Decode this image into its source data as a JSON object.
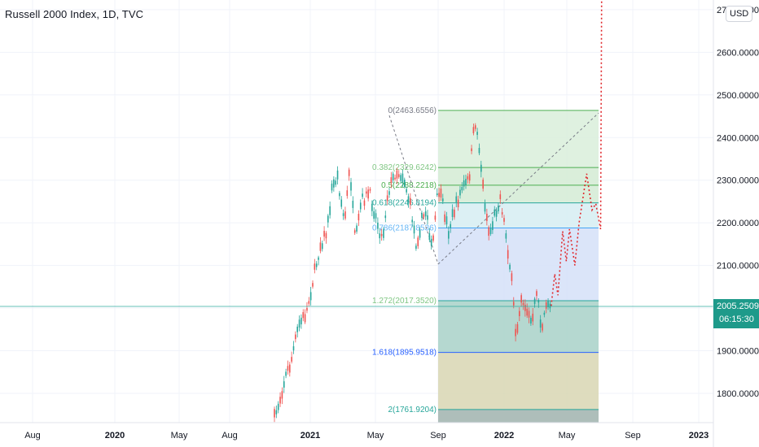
{
  "title": "Russell 2000 Index, 1D, TVC",
  "currency": "USD",
  "last_price": "2005.2509",
  "countdown": "06:15:30",
  "colors": {
    "up": "#26a69a",
    "down": "#ef5350",
    "projection": "#e0282c",
    "last_price_tag": "#1e9a8a"
  },
  "chart_data": {
    "type": "candlestick",
    "x_axis_labels": [
      "Aug",
      "2020",
      "May",
      "Aug",
      "2021",
      "May",
      "Sep",
      "2022",
      "May",
      "Sep",
      "2023"
    ],
    "y_axis_labels": [
      "2700.0000",
      "2600.0000",
      "2500.0000",
      "2400.0000",
      "2300.0000",
      "2200.0000",
      "2100.0000",
      "2000.0000",
      "1900.0000",
      "1800.0000"
    ],
    "ylim": [
      1726,
      2760
    ],
    "price_path": [
      {
        "date": "2020-10-25",
        "close": 1740
      },
      {
        "date": "2020-11-05",
        "close": 1790
      },
      {
        "date": "2020-11-15",
        "close": 1840
      },
      {
        "date": "2020-11-25",
        "close": 1870
      },
      {
        "date": "2020-12-10",
        "close": 1960
      },
      {
        "date": "2020-12-25",
        "close": 1990
      },
      {
        "date": "2021-01-10",
        "close": 2090
      },
      {
        "date": "2021-01-20",
        "close": 2150
      },
      {
        "date": "2021-02-01",
        "close": 2180
      },
      {
        "date": "2021-02-10",
        "close": 2280
      },
      {
        "date": "2021-02-20",
        "close": 2310
      },
      {
        "date": "2021-03-05",
        "close": 2200
      },
      {
        "date": "2021-03-15",
        "close": 2330
      },
      {
        "date": "2021-03-25",
        "close": 2150
      },
      {
        "date": "2021-04-05",
        "close": 2250
      },
      {
        "date": "2021-04-20",
        "close": 2270
      },
      {
        "date": "2021-05-05",
        "close": 2200
      },
      {
        "date": "2021-05-15",
        "close": 2160
      },
      {
        "date": "2021-05-25",
        "close": 2270
      },
      {
        "date": "2021-06-10",
        "close": 2320
      },
      {
        "date": "2021-06-25",
        "close": 2310
      },
      {
        "date": "2021-07-10",
        "close": 2230
      },
      {
        "date": "2021-07-20",
        "close": 2150
      },
      {
        "date": "2021-08-01",
        "close": 2210
      },
      {
        "date": "2021-08-10",
        "close": 2230
      },
      {
        "date": "2021-08-20",
        "close": 2130
      },
      {
        "date": "2021-09-01",
        "close": 2280
      },
      {
        "date": "2021-09-10",
        "close": 2240
      },
      {
        "date": "2021-09-20",
        "close": 2180
      },
      {
        "date": "2021-10-01",
        "close": 2230
      },
      {
        "date": "2021-10-15",
        "close": 2280
      },
      {
        "date": "2021-10-28",
        "close": 2300
      },
      {
        "date": "2021-11-08",
        "close": 2440
      },
      {
        "date": "2021-11-15",
        "close": 2390
      },
      {
        "date": "2021-11-25",
        "close": 2260
      },
      {
        "date": "2021-12-05",
        "close": 2170
      },
      {
        "date": "2021-12-15",
        "close": 2220
      },
      {
        "date": "2021-12-25",
        "close": 2260
      },
      {
        "date": "2022-01-05",
        "close": 2170
      },
      {
        "date": "2022-01-15",
        "close": 2070
      },
      {
        "date": "2022-01-24",
        "close": 1930
      },
      {
        "date": "2022-02-02",
        "close": 2030
      },
      {
        "date": "2022-02-12",
        "close": 2000
      },
      {
        "date": "2022-02-24",
        "close": 1960
      },
      {
        "date": "2022-03-05",
        "close": 2050
      },
      {
        "date": "2022-03-14",
        "close": 1940
      },
      {
        "date": "2022-03-25",
        "close": 2020
      },
      {
        "date": "2022-04-01",
        "close": 2000
      }
    ],
    "fibonacci_levels": [
      {
        "label": "0(2463.6556)",
        "ratio": 0,
        "price": 2463.6556
      },
      {
        "label": "0.382(2329.6242)",
        "ratio": 0.382,
        "price": 2329.6242
      },
      {
        "label": "0.5(2288.2218)",
        "ratio": 0.5,
        "price": 2288.2218
      },
      {
        "label": "0.618(2246.8194)",
        "ratio": 0.618,
        "price": 2246.8194
      },
      {
        "label": "0.786(2187.8536)",
        "ratio": 0.786,
        "price": 2187.8536
      },
      {
        "label": "1.272(2017.3520)",
        "ratio": 1.272,
        "price": 2017.352
      },
      {
        "label": "1.618(1895.9518)",
        "ratio": 1.618,
        "price": 1895.9518
      },
      {
        "label": "2(1761.9204)",
        "ratio": 2,
        "price": 1761.9204
      }
    ],
    "projection_path": [
      {
        "date": "2022-04-01",
        "price": 2005
      },
      {
        "date": "2022-04-08",
        "price": 2080
      },
      {
        "date": "2022-04-14",
        "price": 2030
      },
      {
        "date": "2022-04-23",
        "price": 2180
      },
      {
        "date": "2022-04-30",
        "price": 2110
      },
      {
        "date": "2022-05-06",
        "price": 2185
      },
      {
        "date": "2022-05-16",
        "price": 2100
      },
      {
        "date": "2022-05-24",
        "price": 2200
      },
      {
        "date": "2022-06-07",
        "price": 2315
      },
      {
        "date": "2022-06-17",
        "price": 2230
      },
      {
        "date": "2022-06-24",
        "price": 2245
      },
      {
        "date": "2022-07-03",
        "price": 2185
      },
      {
        "date": "2022-07-05",
        "price": 2745
      }
    ],
    "grid": true
  }
}
